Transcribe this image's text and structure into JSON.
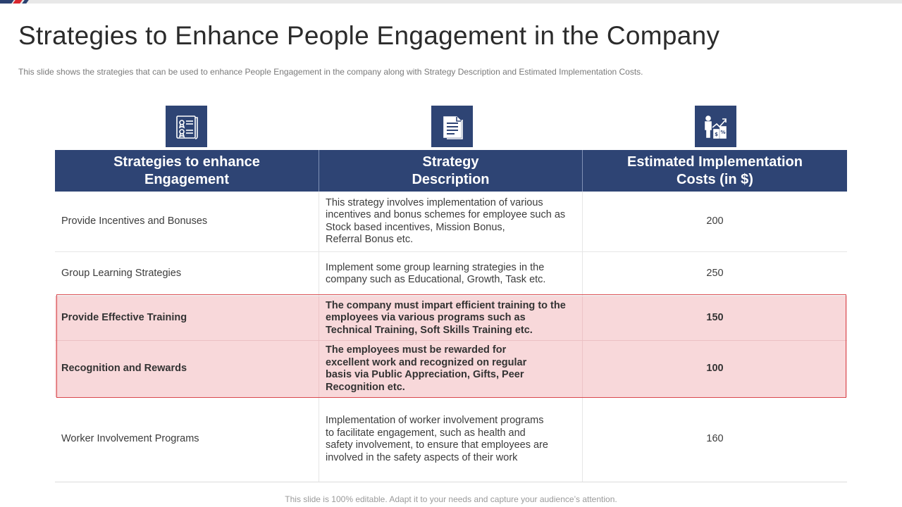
{
  "slide": {
    "title": "Strategies to Enhance People Engagement in the Company",
    "subtitle": "This slide shows the strategies that can be used to enhance People Engagement in the company along with Strategy Description and Estimated Implementation Costs.",
    "footer": "This slide is 100% editable. Adapt it to your needs and capture your audience’s attention."
  },
  "colors": {
    "header_bg": "#2e4474",
    "highlight_bg": "#f8d8da",
    "highlight_border": "#d8484e",
    "accent_red": "#d8262e"
  },
  "icons": [
    "certificate-document-icon",
    "strategy-document-icon",
    "cost-growth-icon"
  ],
  "table": {
    "headers": [
      "Strategies to enhance\nEngagement",
      "Strategy\nDescription",
      "Estimated Implementation\nCosts (in $)"
    ],
    "rows": [
      {
        "strategy": "Provide Incentives and Bonuses",
        "description": "This strategy involves implementation of various\nincentives and bonus schemes for employee such as\nStock based incentives, Mission Bonus,\nReferral Bonus etc.",
        "cost": "200",
        "highlighted": false
      },
      {
        "strategy": "Group Learning Strategies",
        "description": "Implement some group learning strategies in the\ncompany such as Educational, Growth, Task etc.",
        "cost": "250",
        "highlighted": false
      },
      {
        "strategy": "Provide Effective Training",
        "description": "The company must impart efficient training to the\nemployees via various programs such as\nTechnical Training, Soft Skills Training etc.",
        "cost": "150",
        "highlighted": true
      },
      {
        "strategy": "Recognition and Rewards",
        "description": "The employees must be rewarded for\nexcellent work and recognized on regular\nbasis via Public Appreciation, Gifts, Peer\nRecognition etc.",
        "cost": "100",
        "highlighted": true
      },
      {
        "strategy": "Worker Involvement Programs",
        "description": "Implementation of worker involvement programs\nto facilitate engagement, such as health and\nsafety involvement, to ensure that employees are\ninvolved in the safety aspects of their work",
        "cost": "160",
        "highlighted": false
      }
    ]
  }
}
